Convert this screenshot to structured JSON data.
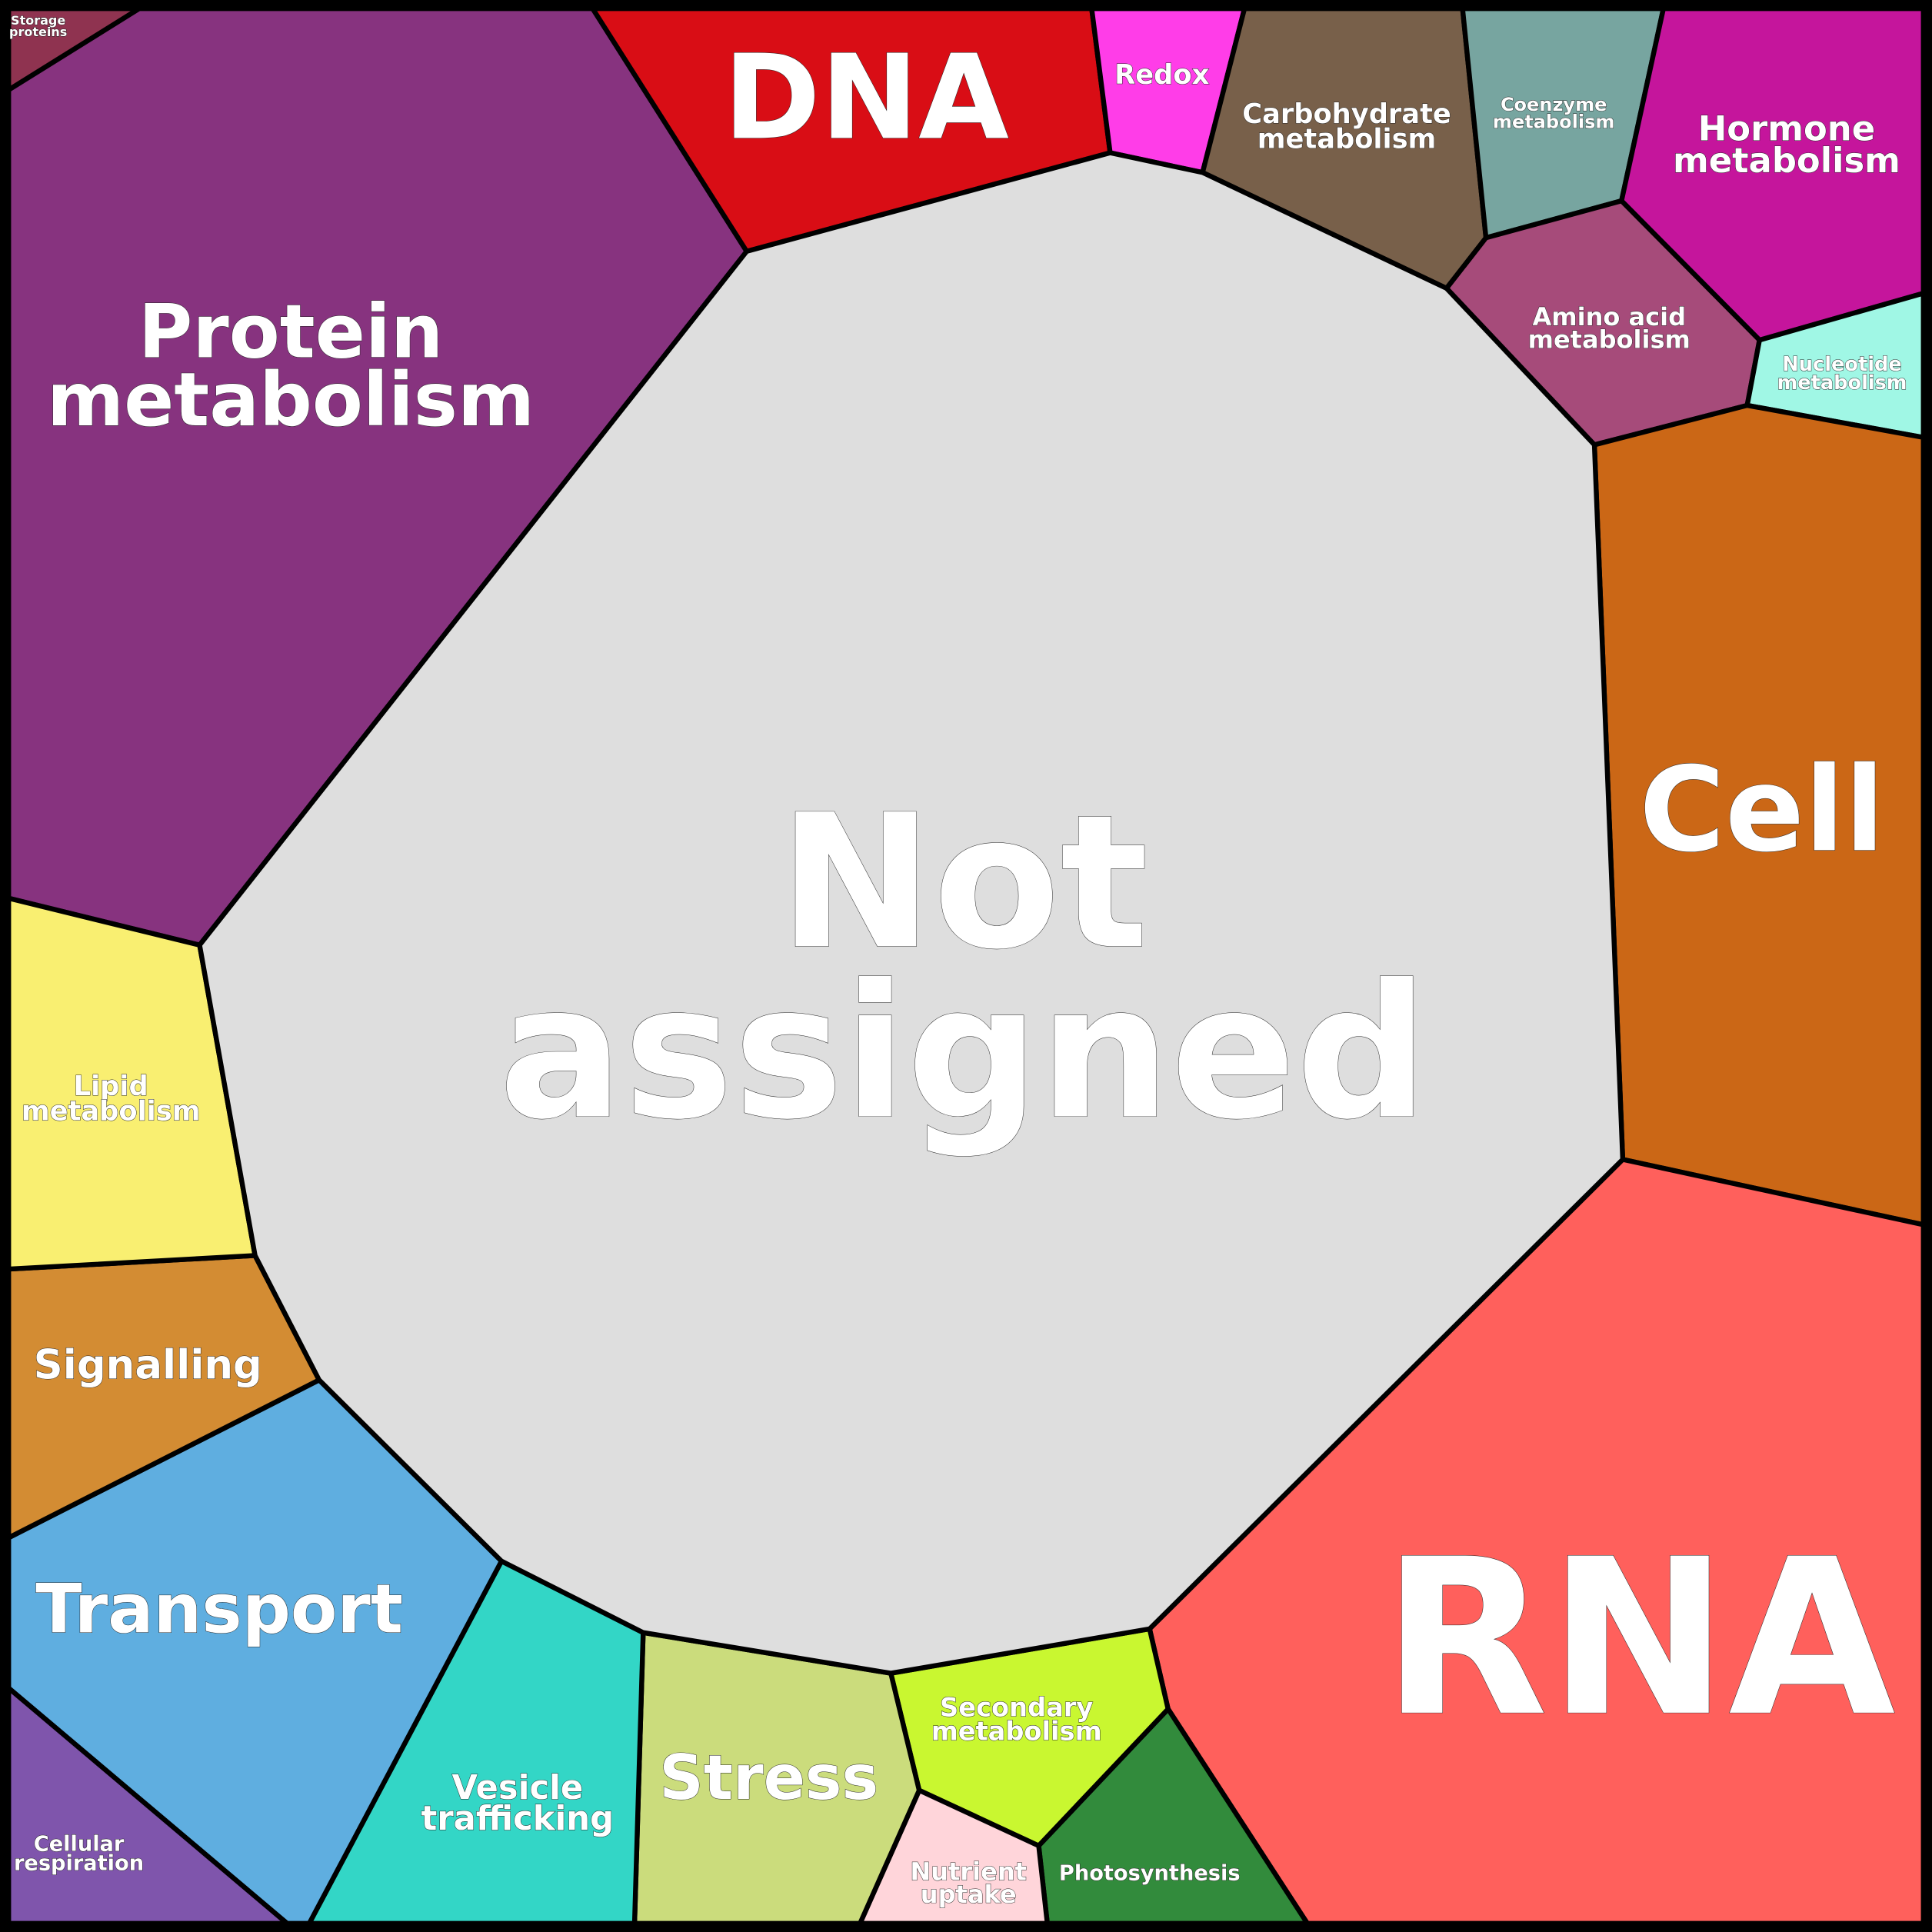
{
  "regions": [
    {
      "id": "storage-proteins",
      "lines": [
        "Storage",
        "proteins"
      ],
      "color": "#8f3350"
    },
    {
      "id": "protein-metabolism",
      "lines": [
        "Protein",
        "metabolism"
      ],
      "color": "#87337f"
    },
    {
      "id": "dna",
      "lines": [
        "DNA"
      ],
      "color": "#d90d15"
    },
    {
      "id": "redox",
      "lines": [
        "Redox"
      ],
      "color": "#ff3de8"
    },
    {
      "id": "carbohydrate-metabolism",
      "lines": [
        "Carbohydrate",
        "metabolism"
      ],
      "color": "#78604a"
    },
    {
      "id": "coenzyme-metabolism",
      "lines": [
        "Coenzyme",
        "metabolism"
      ],
      "color": "#77a5a0"
    },
    {
      "id": "hormone-metabolism",
      "lines": [
        "Hormone",
        "metabolism"
      ],
      "color": "#c5159c"
    },
    {
      "id": "amino-acid-metabolism",
      "lines": [
        "Amino acid",
        "metabolism"
      ],
      "color": "#a64b7a"
    },
    {
      "id": "nucleotide-metabolism",
      "lines": [
        "Nucleotide",
        "metabolism"
      ],
      "color": "#a0f7e5"
    },
    {
      "id": "cell",
      "lines": [
        "Cell"
      ],
      "color": "#cb6716"
    },
    {
      "id": "rna",
      "lines": [
        "RNA"
      ],
      "color": "#ff605c"
    },
    {
      "id": "photosynthesis",
      "lines": [
        "Photosynthesis"
      ],
      "color": "#328b3c"
    },
    {
      "id": "secondary-metabolism",
      "lines": [
        "Secondary",
        "metabolism"
      ],
      "color": "#c9f730"
    },
    {
      "id": "nutrient-uptake",
      "lines": [
        "Nutrient",
        "uptake"
      ],
      "color": "#ffd5da"
    },
    {
      "id": "stress",
      "lines": [
        "Stress"
      ],
      "color": "#cbdc7c"
    },
    {
      "id": "vesicle-trafficking",
      "lines": [
        "Vesicle",
        "trafficking"
      ],
      "color": "#33d6c6"
    },
    {
      "id": "transport",
      "lines": [
        "Transport"
      ],
      "color": "#5faee0"
    },
    {
      "id": "cellular-respiration",
      "lines": [
        "Cellular",
        "respiration"
      ],
      "color": "#7f55ac"
    },
    {
      "id": "signalling",
      "lines": [
        "Signalling"
      ],
      "color": "#d38c33"
    },
    {
      "id": "lipid-metabolism",
      "lines": [
        "Lipid",
        "metabolism"
      ],
      "color": "#f9ef71"
    },
    {
      "id": "not-assigned",
      "lines": [
        "Not",
        "assigned"
      ],
      "color": "#dedede"
    }
  ]
}
